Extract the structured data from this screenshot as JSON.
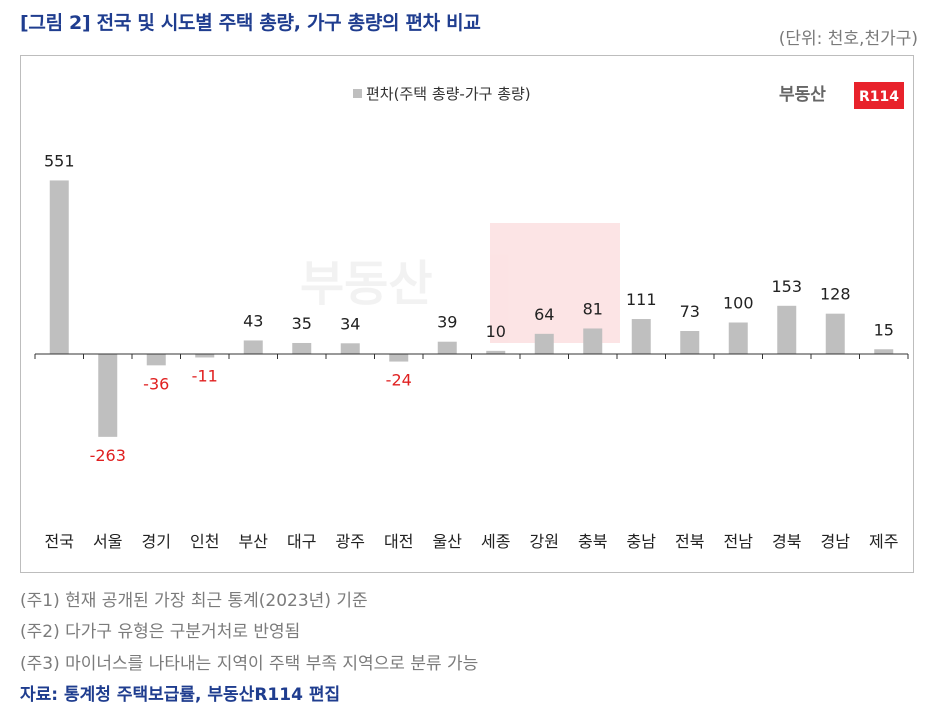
{
  "title": "[그림 2] 전국 및 시도별 주택 총량, 가구 총량의 편차 비교",
  "unit": "(단위: 천호,천가구)",
  "logo": {
    "text": "부동산",
    "badge": "R114"
  },
  "notes": [
    "(주1) 현재 공개된 가장 최근 통계(2023년) 기준",
    "(주2) 다가구 유형은 구분거처로 반영됨",
    "(주3) 마이너스를 나타내는 지역이 주택 부족 지역으로 분류 가능"
  ],
  "source": "자료: 통계청 주택보급률, 부동산R114 편집",
  "colors": {
    "bar": "#bfbfbf",
    "negative_label": "#e02020",
    "positive_label": "#222222",
    "title": "#1f3d8f",
    "logo_red": "#e8222b"
  },
  "chart_data": {
    "type": "bar",
    "categories": [
      "전국",
      "서울",
      "경기",
      "인천",
      "부산",
      "대구",
      "광주",
      "대전",
      "울산",
      "세종",
      "강원",
      "충북",
      "충남",
      "전북",
      "전남",
      "경북",
      "경남",
      "제주"
    ],
    "series": [
      {
        "name": "편차(주택 총량-가구 총량)",
        "values": [
          551,
          -263,
          -36,
          -11,
          43,
          35,
          34,
          -24,
          39,
          10,
          64,
          81,
          111,
          73,
          100,
          153,
          128,
          15
        ]
      }
    ],
    "legend_position": "top-center",
    "grid": false
  }
}
